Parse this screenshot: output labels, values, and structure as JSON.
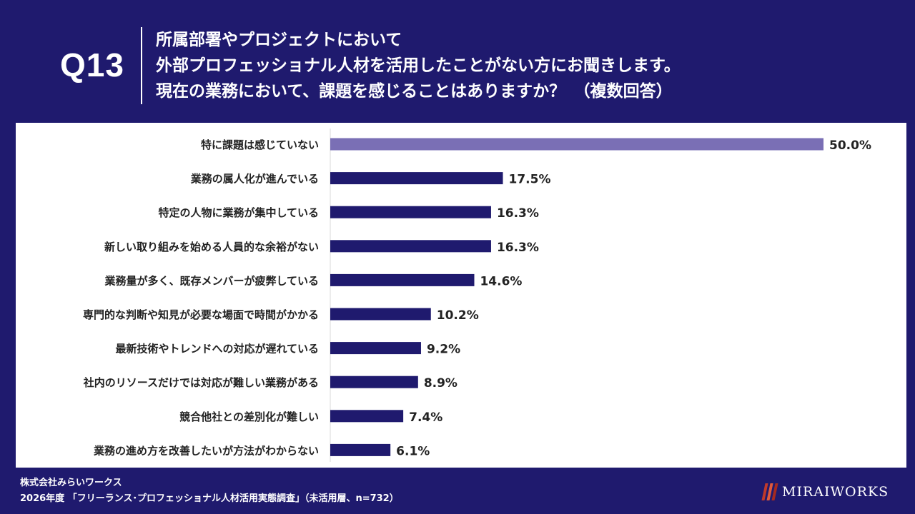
{
  "question": {
    "label": "Q13",
    "lines": [
      "所属部署やプロジェクトにおいて",
      "外部プロフェッショナル人材を活用したことがない方にお聞きします。",
      "現在の業務において、課題を感じることはありますか？　（複数回答）"
    ]
  },
  "chart_data": {
    "type": "bar",
    "orientation": "horizontal",
    "categories": [
      "特に課題は感じていない",
      "業務の属人化が進んでいる",
      "特定の人物に業務が集中している",
      "新しい取り組みを始める人員的な余裕がない",
      "業務量が多く、既存メンバーが疲弊している",
      "専門的な判断や知見が必要な場面で時間がかかる",
      "最新技術やトレンドへの対応が遅れている",
      "社内のリソースだけでは対応が難しい業務がある",
      "競合他社との差別化が難しい",
      "業務の進め方を改善したいが方法がわからない"
    ],
    "values": [
      50.0,
      17.5,
      16.3,
      16.3,
      14.6,
      10.2,
      9.2,
      8.9,
      7.4,
      6.1
    ],
    "value_labels": [
      "50.0%",
      "17.5%",
      "16.3%",
      "16.3%",
      "14.6%",
      "10.2%",
      "9.2%",
      "8.9%",
      "7.4%",
      "6.1%"
    ],
    "unit": "%",
    "xlim": [
      0,
      50
    ],
    "colors": {
      "highlight": "#7a6fb5",
      "default": "#1f1a6e"
    },
    "highlight_index": 0
  },
  "footer": {
    "company": "株式会社みらいワークス",
    "source": "2026年度 「フリーランス･プロフェッショナル人材活用実態調査」（未活用層、n=732）"
  },
  "logo": {
    "text": "MIRAIWORKS"
  }
}
